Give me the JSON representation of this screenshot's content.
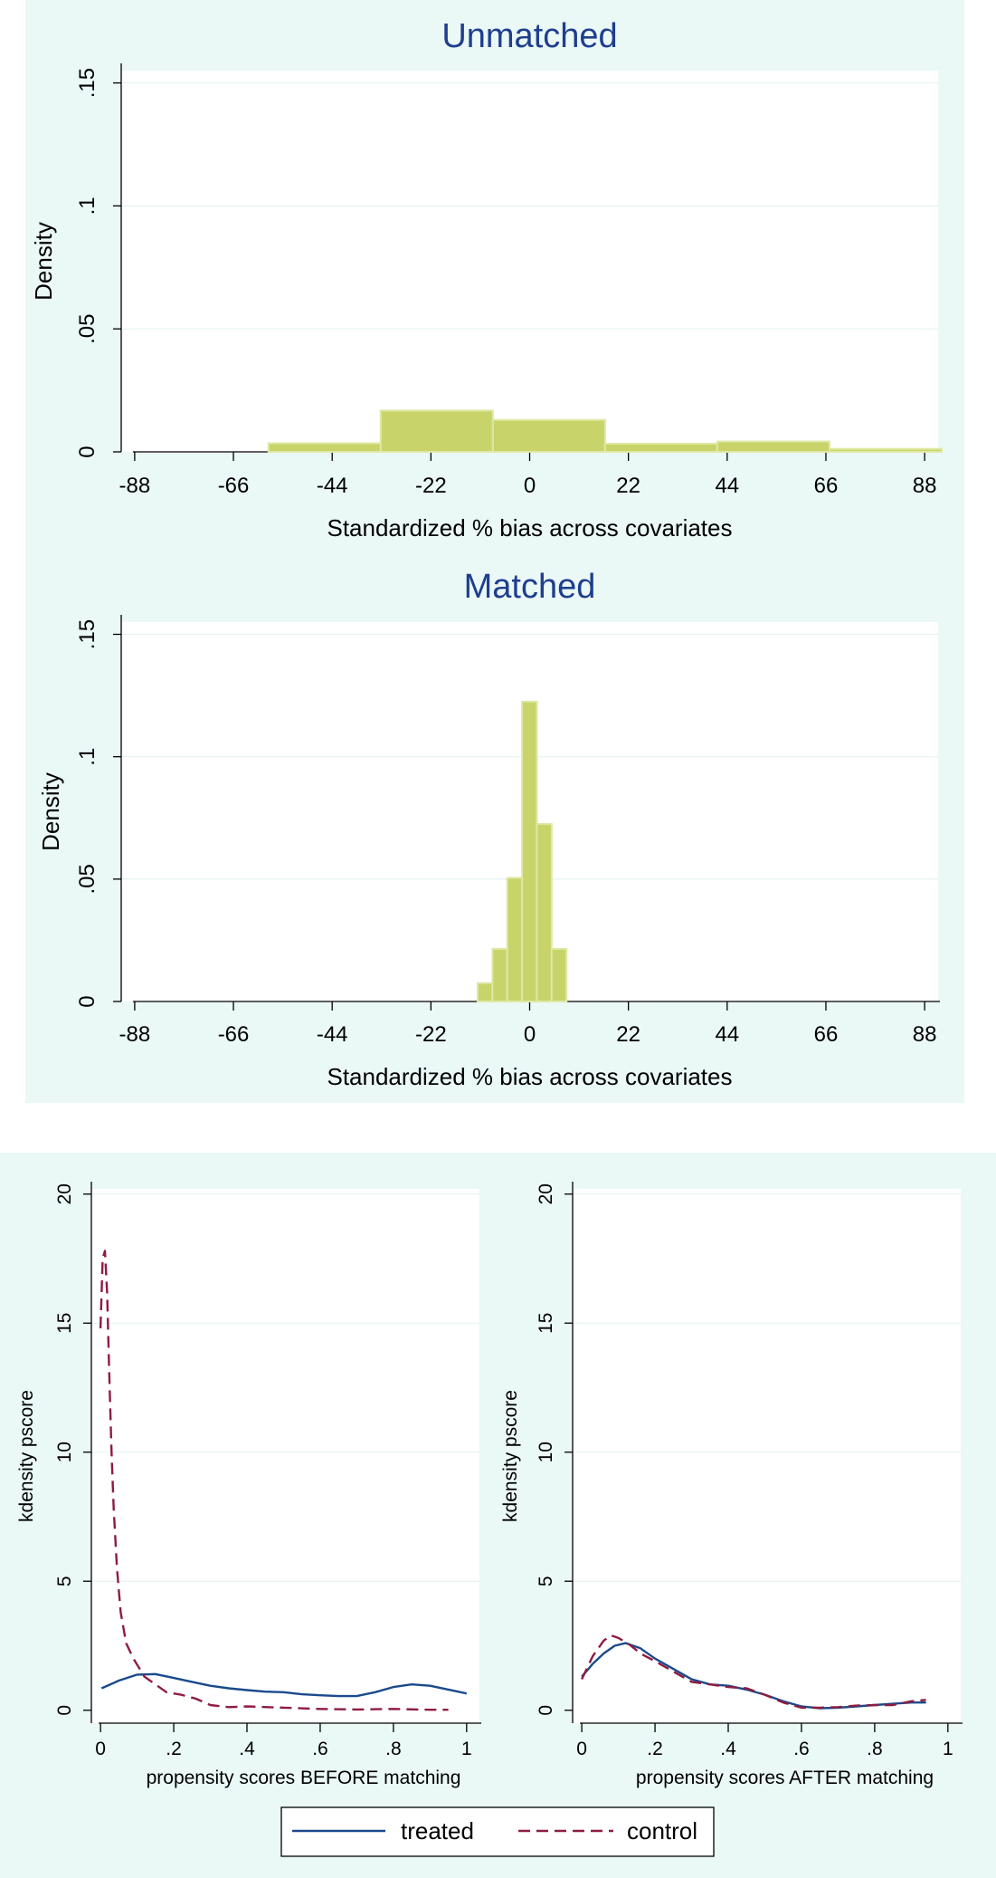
{
  "colors": {
    "panel_bg": "#eaf8f6",
    "plot_bg": "#ffffff",
    "bar_fill": "#c8d46a",
    "bar_stroke": "#dfe8a4",
    "title": "#1f3e8e",
    "grid": "#e4f3f0",
    "axis": "#000000",
    "treated": "#1a4a8c",
    "control": "#8e1c40"
  },
  "chart_data": [
    {
      "type": "bar",
      "subtype": "histogram",
      "title": "Unmatched",
      "xlabel": "Standardized % bias across covariates",
      "ylabel": "Density",
      "xlim": [
        -91,
        91
      ],
      "ylim": [
        0,
        0.155
      ],
      "xticks": [
        -88,
        -66,
        -44,
        -22,
        0,
        22,
        44,
        66,
        88
      ],
      "yticks": [
        0,
        0.05,
        0.1,
        0.15
      ],
      "ytick_labels": [
        "0",
        ".05",
        ".1",
        ".15"
      ],
      "bins": [
        {
          "from": -58.2,
          "to": -33.2,
          "value": 0.0035
        },
        {
          "from": -33.2,
          "to": -8.2,
          "value": 0.0168
        },
        {
          "from": -8.2,
          "to": 16.8,
          "value": 0.013
        },
        {
          "from": 16.8,
          "to": 41.8,
          "value": 0.0033
        },
        {
          "from": 41.8,
          "to": 66.8,
          "value": 0.0042
        },
        {
          "from": 66.8,
          "to": 91.8,
          "value": 0.0012
        }
      ]
    },
    {
      "type": "bar",
      "subtype": "histogram",
      "title": "Matched",
      "xlabel": "Standardized % bias across covariates",
      "ylabel": "Density",
      "xlim": [
        -91,
        91
      ],
      "ylim": [
        0,
        0.155
      ],
      "xticks": [
        -88,
        -66,
        -44,
        -22,
        0,
        22,
        44,
        66,
        88
      ],
      "yticks": [
        0,
        0.05,
        0.1,
        0.15
      ],
      "ytick_labels": [
        "0",
        ".05",
        ".1",
        ".15"
      ],
      "bins": [
        {
          "from": -11.6,
          "to": -8.3,
          "value": 0.0075
        },
        {
          "from": -8.3,
          "to": -5.0,
          "value": 0.0215
        },
        {
          "from": -5.0,
          "to": -1.7,
          "value": 0.0505
        },
        {
          "from": -1.7,
          "to": 1.6,
          "value": 0.1225
        },
        {
          "from": 1.6,
          "to": 4.9,
          "value": 0.0725
        },
        {
          "from": 4.9,
          "to": 8.2,
          "value": 0.0215
        }
      ]
    },
    {
      "type": "line",
      "title": "",
      "xlabel": "propensity scores BEFORE matching",
      "ylabel": "kdensity pscore",
      "xlim": [
        -0.025,
        1.035
      ],
      "ylim": [
        -0.5,
        20.2
      ],
      "xticks": [
        0,
        0.2,
        0.4,
        0.6,
        0.8,
        1
      ],
      "xtick_labels": [
        "0",
        ".2",
        ".4",
        ".6",
        ".8",
        "1"
      ],
      "yticks": [
        0,
        5,
        10,
        15,
        20
      ],
      "series": [
        {
          "name": "treated",
          "style": "solid",
          "x": [
            0.003,
            0.05,
            0.1,
            0.15,
            0.2,
            0.25,
            0.3,
            0.35,
            0.4,
            0.45,
            0.5,
            0.55,
            0.6,
            0.65,
            0.7,
            0.75,
            0.8,
            0.85,
            0.9,
            0.95,
            1.0
          ],
          "y": [
            0.85,
            1.15,
            1.38,
            1.4,
            1.25,
            1.1,
            0.95,
            0.85,
            0.78,
            0.72,
            0.7,
            0.62,
            0.58,
            0.55,
            0.55,
            0.7,
            0.9,
            1.0,
            0.95,
            0.8,
            0.65
          ]
        },
        {
          "name": "control",
          "style": "dashed",
          "x": [
            0.0,
            0.006,
            0.012,
            0.018,
            0.024,
            0.03,
            0.036,
            0.045,
            0.055,
            0.07,
            0.09,
            0.12,
            0.15,
            0.18,
            0.22,
            0.26,
            0.3,
            0.35,
            0.4,
            0.5,
            0.6,
            0.7,
            0.8,
            0.9,
            0.95
          ],
          "y": [
            14.8,
            17.5,
            17.8,
            16.2,
            13.0,
            10.0,
            7.8,
            5.5,
            3.8,
            2.6,
            2.0,
            1.3,
            1.0,
            0.7,
            0.6,
            0.45,
            0.2,
            0.12,
            0.15,
            0.1,
            0.05,
            0.03,
            0.05,
            0.02,
            0.02
          ]
        }
      ]
    },
    {
      "type": "line",
      "title": "",
      "xlabel": "propensity scores AFTER matching",
      "ylabel": "kdensity pscore",
      "xlim": [
        -0.025,
        1.035
      ],
      "ylim": [
        -0.5,
        20.2
      ],
      "xticks": [
        0,
        0.2,
        0.4,
        0.6,
        0.8,
        1
      ],
      "xtick_labels": [
        "0",
        ".2",
        ".4",
        ".6",
        ".8",
        "1"
      ],
      "yticks": [
        0,
        5,
        10,
        15,
        20
      ],
      "series": [
        {
          "name": "treated",
          "style": "solid",
          "x": [
            0.0,
            0.03,
            0.06,
            0.09,
            0.12,
            0.16,
            0.2,
            0.25,
            0.3,
            0.35,
            0.4,
            0.45,
            0.5,
            0.55,
            0.6,
            0.65,
            0.7,
            0.75,
            0.8,
            0.85,
            0.9,
            0.94
          ],
          "y": [
            1.3,
            1.8,
            2.2,
            2.5,
            2.6,
            2.4,
            2.0,
            1.6,
            1.2,
            1.0,
            0.95,
            0.8,
            0.6,
            0.35,
            0.15,
            0.08,
            0.1,
            0.15,
            0.2,
            0.25,
            0.3,
            0.3
          ]
        },
        {
          "name": "control",
          "style": "dashed",
          "x": [
            0.0,
            0.03,
            0.06,
            0.08,
            0.1,
            0.13,
            0.16,
            0.2,
            0.25,
            0.3,
            0.35,
            0.4,
            0.45,
            0.5,
            0.55,
            0.6,
            0.65,
            0.7,
            0.75,
            0.8,
            0.85,
            0.9,
            0.94
          ],
          "y": [
            1.2,
            2.1,
            2.7,
            2.9,
            2.8,
            2.55,
            2.2,
            1.9,
            1.5,
            1.1,
            1.0,
            0.9,
            0.85,
            0.6,
            0.3,
            0.1,
            0.1,
            0.12,
            0.18,
            0.2,
            0.2,
            0.35,
            0.4
          ]
        }
      ]
    }
  ],
  "legend": {
    "placement": "bottom-center",
    "items": [
      {
        "label": "treated",
        "style": "solid"
      },
      {
        "label": "control",
        "style": "dashed"
      }
    ]
  }
}
